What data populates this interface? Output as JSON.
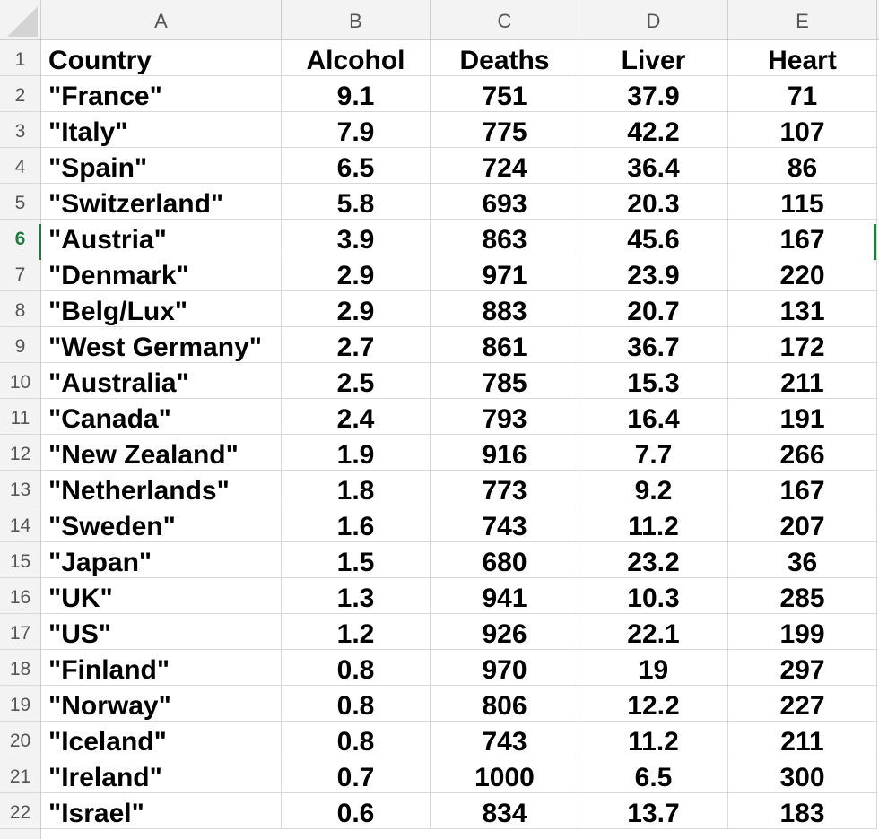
{
  "columns": [
    "A",
    "B",
    "C",
    "D",
    "E"
  ],
  "header": [
    "Country",
    "Alcohol",
    "Deaths",
    "Liver",
    "Heart"
  ],
  "active_row": 6,
  "rows": [
    {
      "num": "2",
      "country": "\"France\"",
      "alcohol": "9.1",
      "deaths": "751",
      "liver": "37.9",
      "heart": "71"
    },
    {
      "num": "3",
      "country": "\"Italy\"",
      "alcohol": "7.9",
      "deaths": "775",
      "liver": "42.2",
      "heart": "107"
    },
    {
      "num": "4",
      "country": "\"Spain\"",
      "alcohol": "6.5",
      "deaths": "724",
      "liver": "36.4",
      "heart": "86"
    },
    {
      "num": "5",
      "country": "\"Switzerland\"",
      "alcohol": "5.8",
      "deaths": "693",
      "liver": "20.3",
      "heart": "115"
    },
    {
      "num": "6",
      "country": "\"Austria\"",
      "alcohol": "3.9",
      "deaths": "863",
      "liver": "45.6",
      "heart": "167"
    },
    {
      "num": "7",
      "country": "\"Denmark\"",
      "alcohol": "2.9",
      "deaths": "971",
      "liver": "23.9",
      "heart": "220"
    },
    {
      "num": "8",
      "country": "\"Belg/Lux\"",
      "alcohol": "2.9",
      "deaths": "883",
      "liver": "20.7",
      "heart": "131"
    },
    {
      "num": "9",
      "country": "\"West Germany\"",
      "alcohol": "2.7",
      "deaths": "861",
      "liver": "36.7",
      "heart": "172"
    },
    {
      "num": "10",
      "country": "\"Australia\"",
      "alcohol": "2.5",
      "deaths": "785",
      "liver": "15.3",
      "heart": "211"
    },
    {
      "num": "11",
      "country": "\"Canada\"",
      "alcohol": "2.4",
      "deaths": "793",
      "liver": "16.4",
      "heart": "191"
    },
    {
      "num": "12",
      "country": "\"New Zealand\"",
      "alcohol": "1.9",
      "deaths": "916",
      "liver": "7.7",
      "heart": "266"
    },
    {
      "num": "13",
      "country": "\"Netherlands\"",
      "alcohol": "1.8",
      "deaths": "773",
      "liver": "9.2",
      "heart": "167"
    },
    {
      "num": "14",
      "country": "\"Sweden\"",
      "alcohol": "1.6",
      "deaths": "743",
      "liver": "11.2",
      "heart": "207"
    },
    {
      "num": "15",
      "country": "\"Japan\"",
      "alcohol": "1.5",
      "deaths": "680",
      "liver": "23.2",
      "heart": "36"
    },
    {
      "num": "16",
      "country": "\"UK\"",
      "alcohol": "1.3",
      "deaths": "941",
      "liver": "10.3",
      "heart": "285"
    },
    {
      "num": "17",
      "country": "\"US\"",
      "alcohol": "1.2",
      "deaths": "926",
      "liver": "22.1",
      "heart": "199"
    },
    {
      "num": "18",
      "country": "\"Finland\"",
      "alcohol": "0.8",
      "deaths": "970",
      "liver": "19",
      "heart": "297"
    },
    {
      "num": "19",
      "country": "\"Norway\"",
      "alcohol": "0.8",
      "deaths": "806",
      "liver": "12.2",
      "heart": "227"
    },
    {
      "num": "20",
      "country": "\"Iceland\"",
      "alcohol": "0.8",
      "deaths": "743",
      "liver": "11.2",
      "heart": "211"
    },
    {
      "num": "21",
      "country": "\"Ireland\"",
      "alcohol": "0.7",
      "deaths": "1000",
      "liver": "6.5",
      "heart": "300"
    },
    {
      "num": "22",
      "country": "\"Israel\"",
      "alcohol": "0.6",
      "deaths": "834",
      "liver": "13.7",
      "heart": "183"
    }
  ]
}
